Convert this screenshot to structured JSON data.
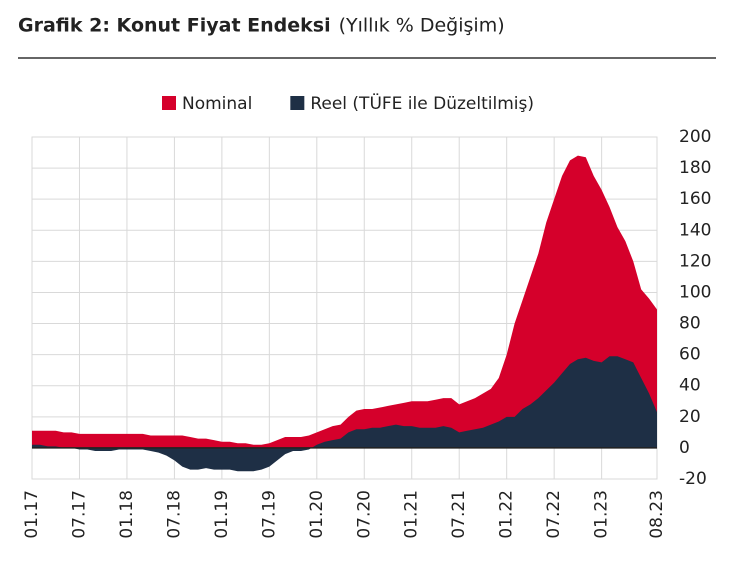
{
  "chart_data": {
    "type": "area",
    "title": "Grafik 2: Konut Fiyat Endeksi",
    "subtitle": "(Yıllık % Değişim)",
    "categories": [
      "01.17",
      null,
      null,
      null,
      null,
      null,
      "07.17",
      null,
      null,
      null,
      null,
      null,
      "01.18",
      null,
      null,
      null,
      null,
      null,
      "07.18",
      null,
      null,
      null,
      null,
      null,
      "01.19",
      null,
      null,
      null,
      null,
      null,
      "07.19",
      null,
      null,
      null,
      null,
      null,
      "01.20",
      null,
      null,
      null,
      null,
      null,
      "07.20",
      null,
      null,
      null,
      null,
      null,
      "01.21",
      null,
      null,
      null,
      null,
      null,
      "07.21",
      null,
      null,
      null,
      null,
      null,
      "01.22",
      null,
      null,
      null,
      null,
      null,
      "07.22",
      null,
      null,
      null,
      null,
      null,
      "01.23",
      null,
      null,
      null,
      null,
      null,
      null,
      "08.23"
    ],
    "series": [
      {
        "name": "Nominal",
        "color": "#d5002b",
        "values": [
          11,
          11,
          11,
          11,
          10,
          10,
          9,
          9,
          9,
          9,
          9,
          9,
          9,
          9,
          9,
          8,
          8,
          8,
          8,
          8,
          7,
          6,
          6,
          5,
          4,
          4,
          3,
          3,
          2,
          2,
          3,
          5,
          7,
          7,
          7,
          8,
          10,
          12,
          14,
          15,
          20,
          24,
          25,
          25,
          26,
          27,
          28,
          29,
          30,
          30,
          30,
          31,
          32,
          32,
          28,
          30,
          32,
          35,
          38,
          45,
          60,
          80,
          95,
          110,
          125,
          145,
          160,
          175,
          185,
          188,
          187,
          175,
          166,
          155,
          142,
          133,
          120,
          102,
          96,
          89
        ]
      },
      {
        "name": "Reel (TÜFE ile Düzeltilmiş)",
        "color": "#1e2f45",
        "values": [
          2,
          2,
          1,
          1,
          0,
          0,
          -1,
          -1,
          -2,
          -2,
          -2,
          -1,
          -1,
          -1,
          -1,
          -2,
          -3,
          -5,
          -8,
          -12,
          -14,
          -14,
          -13,
          -14,
          -14,
          -14,
          -15,
          -15,
          -15,
          -14,
          -12,
          -8,
          -4,
          -2,
          -2,
          -1,
          2,
          4,
          5,
          6,
          10,
          12,
          12,
          13,
          13,
          14,
          15,
          14,
          14,
          13,
          13,
          13,
          14,
          13,
          10,
          11,
          12,
          13,
          15,
          17,
          20,
          20,
          25,
          28,
          32,
          37,
          42,
          48,
          54,
          57,
          58,
          56,
          55,
          59,
          59,
          57,
          55,
          45,
          35,
          23
        ]
      }
    ],
    "ylim": [
      -20,
      200
    ],
    "yticks": [
      -20,
      0,
      20,
      40,
      60,
      80,
      100,
      120,
      140,
      160,
      180,
      200
    ],
    "grid": true,
    "legend": "top"
  }
}
